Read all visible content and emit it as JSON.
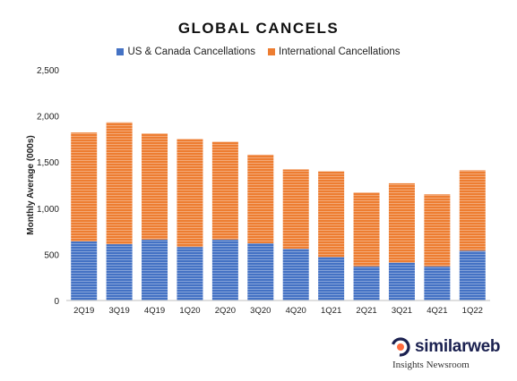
{
  "chart_data": {
    "type": "bar",
    "stacked": true,
    "title": "GLOBAL CANCELS",
    "ylabel": "Monthly Average (000s)",
    "xlabel": "",
    "ylim": [
      0,
      2500
    ],
    "yticks": [
      "0",
      "500",
      "1,000",
      "1,500",
      "2,000",
      "2,500"
    ],
    "ytick_values": [
      0,
      500,
      1000,
      1500,
      2000,
      2500
    ],
    "grid": false,
    "legend_position": "top",
    "categories": [
      "2Q19",
      "3Q19",
      "4Q19",
      "1Q20",
      "2Q20",
      "3Q20",
      "4Q20",
      "1Q21",
      "2Q21",
      "3Q21",
      "4Q21",
      "1Q22"
    ],
    "series": [
      {
        "name": "US & Canada Cancellations",
        "color": "#4472c4",
        "values": [
          640,
          610,
          660,
          580,
          660,
          620,
          560,
          470,
          370,
          410,
          370,
          540
        ]
      },
      {
        "name": "International Cancellations",
        "color": "#ed7d31",
        "values": [
          1180,
          1320,
          1150,
          1170,
          1060,
          960,
          860,
          930,
          800,
          860,
          780,
          870
        ]
      }
    ]
  },
  "brand": {
    "name": "similarweb",
    "subtitle": "Insights Newsroom",
    "logo_icon": "similarweb-logo-icon"
  }
}
